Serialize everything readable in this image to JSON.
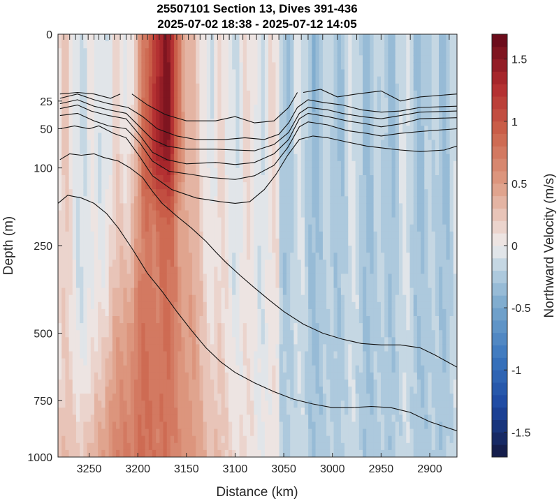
{
  "chart_data": {
    "type": "heatmap",
    "title": [
      "25507101 Section 13, Dives 391-436",
      "2025-07-02 18:38 - 2025-07-12 14:05"
    ],
    "xlabel": "Distance (km)",
    "ylabel": "Depth (m)",
    "colorbar_label": "Northward Velocity (m/s)",
    "x_axis": {
      "reversed": true,
      "range": [
        3282,
        2872
      ],
      "ticks": [
        3250,
        3200,
        3150,
        3100,
        3050,
        3000,
        2950,
        2900
      ]
    },
    "y_axis": {
      "scale": "sqrt",
      "reversed": true,
      "range": [
        0,
        1000
      ],
      "ticks": [
        0,
        25,
        50,
        100,
        250,
        500,
        750,
        1000
      ]
    },
    "colorbar": {
      "range": [
        -1.7,
        1.7
      ],
      "ticks": [
        1.5,
        1,
        0.5,
        0,
        -0.5,
        -1,
        -1.5
      ],
      "levels": 34
    },
    "dive_distances_km": [
      3276,
      3270,
      3264,
      3257,
      3251,
      3245,
      3240,
      3234,
      3229,
      3224,
      3218,
      3212,
      3207,
      3201,
      3195,
      3190,
      3184,
      3178,
      3172,
      3166,
      3160,
      3154,
      3148,
      3142,
      3136,
      3130,
      3124,
      3118,
      3112,
      3106,
      3100,
      3092,
      3085,
      3078,
      3070,
      3062,
      3055,
      3048,
      3040,
      3032,
      3025,
      3010,
      2995,
      2975,
      2950,
      2920,
      2880
    ],
    "jet": {
      "center_km": 3172,
      "peak": 1.65,
      "deep_value": 0.8
    },
    "contours": [
      {
        "points": [
          [
            3280,
            20
          ],
          [
            3262,
            19
          ],
          [
            3245,
            20
          ],
          [
            3228,
            23
          ],
          [
            3218,
            20
          ]
        ]
      },
      {
        "points": [
          [
            3206,
            20
          ],
          [
            3190,
            28
          ],
          [
            3172,
            36
          ],
          [
            3150,
            42
          ],
          [
            3120,
            42
          ],
          [
            3100,
            38
          ],
          [
            3080,
            44
          ],
          [
            3060,
            42
          ],
          [
            3045,
            30
          ],
          [
            3036,
            19
          ]
        ]
      },
      {
        "points": [
          [
            3030,
            19
          ],
          [
            3012,
            17
          ],
          [
            2995,
            22
          ],
          [
            2975,
            20
          ],
          [
            2950,
            18
          ],
          [
            2930,
            25
          ],
          [
            2910,
            22
          ],
          [
            2872,
            20
          ]
        ]
      },
      {
        "points": [
          [
            3280,
            23
          ],
          [
            3262,
            20
          ],
          [
            3245,
            24
          ],
          [
            3230,
            27
          ],
          [
            3210,
            30
          ],
          [
            3195,
            38
          ],
          [
            3180,
            50
          ],
          [
            3160,
            58
          ],
          [
            3140,
            62
          ],
          [
            3110,
            62
          ],
          [
            3090,
            60
          ],
          [
            3070,
            62
          ],
          [
            3055,
            56
          ],
          [
            3045,
            44
          ],
          [
            3036,
            30
          ],
          [
            3025,
            24
          ],
          [
            3010,
            26
          ],
          [
            2990,
            28
          ],
          [
            2970,
            32
          ],
          [
            2950,
            34
          ],
          [
            2930,
            33
          ],
          [
            2910,
            30
          ],
          [
            2872,
            29
          ]
        ]
      },
      {
        "points": [
          [
            3280,
            27
          ],
          [
            3262,
            24
          ],
          [
            3245,
            29
          ],
          [
            3230,
            32
          ],
          [
            3212,
            35
          ],
          [
            3198,
            48
          ],
          [
            3185,
            62
          ],
          [
            3170,
            70
          ],
          [
            3150,
            74
          ],
          [
            3120,
            74
          ],
          [
            3100,
            75
          ],
          [
            3080,
            76
          ],
          [
            3060,
            68
          ],
          [
            3045,
            54
          ],
          [
            3034,
            35
          ],
          [
            3025,
            30
          ],
          [
            3005,
            32
          ],
          [
            2990,
            35
          ],
          [
            2970,
            38
          ],
          [
            2950,
            40
          ],
          [
            2930,
            37
          ],
          [
            2910,
            34
          ],
          [
            2872,
            33
          ]
        ]
      },
      {
        "points": [
          [
            3280,
            31
          ],
          [
            3262,
            28
          ],
          [
            3248,
            33
          ],
          [
            3230,
            37
          ],
          [
            3212,
            40
          ],
          [
            3198,
            57
          ],
          [
            3185,
            78
          ],
          [
            3170,
            88
          ],
          [
            3150,
            94
          ],
          [
            3120,
            92
          ],
          [
            3100,
            95
          ],
          [
            3080,
            92
          ],
          [
            3060,
            80
          ],
          [
            3045,
            62
          ],
          [
            3034,
            40
          ],
          [
            3025,
            35
          ],
          [
            3005,
            38
          ],
          [
            2985,
            42
          ],
          [
            2965,
            45
          ],
          [
            2950,
            48
          ],
          [
            2930,
            45
          ],
          [
            2910,
            40
          ],
          [
            2872,
            39
          ]
        ]
      },
      {
        "points": [
          [
            3280,
            37
          ],
          [
            3262,
            35
          ],
          [
            3245,
            42
          ],
          [
            3230,
            47
          ],
          [
            3212,
            50
          ],
          [
            3198,
            66
          ],
          [
            3185,
            90
          ],
          [
            3168,
            105
          ],
          [
            3145,
            110
          ],
          [
            3125,
            115
          ],
          [
            3100,
            118
          ],
          [
            3080,
            112
          ],
          [
            3060,
            96
          ],
          [
            3046,
            72
          ],
          [
            3034,
            48
          ],
          [
            3025,
            43
          ],
          [
            3005,
            46
          ],
          [
            2985,
            52
          ],
          [
            2965,
            55
          ],
          [
            2950,
            58
          ],
          [
            2930,
            55
          ],
          [
            2910,
            53
          ],
          [
            2872,
            50
          ]
        ]
      },
      {
        "points": [
          [
            3280,
            50
          ],
          [
            3265,
            47
          ],
          [
            3250,
            50
          ],
          [
            3240,
            47
          ],
          [
            3225,
            55
          ],
          [
            3212,
            60
          ],
          [
            3198,
            84
          ],
          [
            3185,
            112
          ],
          [
            3165,
            135
          ],
          [
            3140,
            150
          ],
          [
            3115,
            157
          ],
          [
            3100,
            160
          ],
          [
            3085,
            157
          ],
          [
            3070,
            135
          ],
          [
            3058,
            110
          ],
          [
            3046,
            82
          ],
          [
            3034,
            62
          ],
          [
            3020,
            58
          ],
          [
            3005,
            60
          ],
          [
            2985,
            65
          ],
          [
            2965,
            70
          ],
          [
            2945,
            73
          ],
          [
            2930,
            75
          ],
          [
            2910,
            77
          ],
          [
            2885,
            75
          ],
          [
            2872,
            70
          ]
        ]
      },
      {
        "points": [
          [
            3280,
            88
          ],
          [
            3270,
            80
          ],
          [
            3258,
            82
          ],
          [
            3245,
            80
          ],
          [
            3235,
            85
          ],
          [
            3220,
            90
          ],
          [
            3208,
            100
          ],
          [
            3195,
            115
          ],
          [
            3185,
            138
          ],
          [
            3175,
            160
          ],
          [
            3160,
            185
          ],
          [
            3145,
            210
          ],
          [
            3130,
            240
          ],
          [
            3120,
            265
          ],
          [
            3110,
            290
          ],
          [
            3095,
            325
          ],
          [
            3080,
            360
          ],
          [
            3065,
            395
          ],
          [
            3050,
            430
          ],
          [
            3030,
            470
          ],
          [
            3010,
            500
          ],
          [
            2990,
            520
          ],
          [
            2970,
            535
          ],
          [
            2950,
            540
          ],
          [
            2930,
            540
          ],
          [
            2910,
            550
          ],
          [
            2895,
            575
          ],
          [
            2872,
            620
          ]
        ]
      },
      {
        "points": [
          [
            3282,
            160
          ],
          [
            3272,
            145
          ],
          [
            3258,
            150
          ],
          [
            3245,
            160
          ],
          [
            3232,
            180
          ],
          [
            3220,
            210
          ],
          [
            3205,
            260
          ],
          [
            3190,
            320
          ],
          [
            3175,
            370
          ],
          [
            3160,
            430
          ],
          [
            3145,
            490
          ],
          [
            3130,
            550
          ],
          [
            3115,
            600
          ],
          [
            3100,
            640
          ],
          [
            3080,
            680
          ],
          [
            3060,
            715
          ],
          [
            3040,
            745
          ],
          [
            3020,
            765
          ],
          [
            3000,
            780
          ],
          [
            2980,
            780
          ],
          [
            2960,
            775
          ],
          [
            2940,
            780
          ],
          [
            2920,
            800
          ],
          [
            2900,
            840
          ],
          [
            2872,
            880
          ]
        ]
      }
    ]
  }
}
